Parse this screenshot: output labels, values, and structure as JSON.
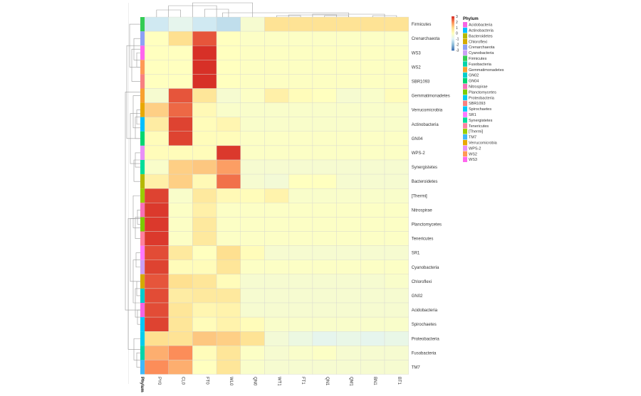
{
  "chart_data": {
    "type": "heatmap",
    "columns": [
      "PY0",
      "CL0",
      "FT0",
      "WL0",
      "QN0",
      "WT1",
      "FT1",
      "QN1",
      "QM1",
      "BN1",
      "BT1"
    ],
    "rows": [
      "Firmicutes",
      "Crenarchaeota",
      "WS3",
      "WS2",
      "SBR1093",
      "Gemmatimonadetes",
      "Verrucomicrobia",
      "Actinobacteria",
      "GN04",
      "WPS-2",
      "Synergistetes",
      "Bacteroidetes",
      "[Thermi]",
      "Nitrospirae",
      "Planctomycetes",
      "Tenericutes",
      "SR1",
      "Cyanobacteria",
      "Chloroflexi",
      "GN02",
      "Acidobacteria",
      "Spirochaetes",
      "Proteobacteria",
      "Fusobacteria",
      "TM7"
    ],
    "values": [
      [
        -1.2,
        -0.8,
        -1.2,
        -1.4,
        -0.3,
        0.9,
        0.9,
        0.9,
        0.9,
        0.9,
        0.9
      ],
      [
        0.0,
        1.0,
        2.6,
        0.0,
        -0.1,
        -0.1,
        -0.1,
        -0.1,
        -0.1,
        -0.1,
        -0.1
      ],
      [
        0.0,
        0.0,
        3.0,
        0.0,
        -0.05,
        -0.05,
        -0.05,
        -0.05,
        -0.05,
        -0.05,
        -0.05
      ],
      [
        0.0,
        0.0,
        3.0,
        0.0,
        -0.05,
        -0.05,
        -0.05,
        -0.05,
        -0.05,
        -0.05,
        -0.05
      ],
      [
        0.0,
        0.0,
        3.0,
        0.0,
        -0.05,
        -0.05,
        -0.05,
        -0.05,
        -0.05,
        -0.05,
        -0.05
      ],
      [
        -0.3,
        2.6,
        0.8,
        -0.3,
        -0.1,
        0.5,
        0.1,
        0.0,
        -0.3,
        -0.2,
        0.1
      ],
      [
        1.2,
        2.4,
        0.2,
        -0.2,
        -0.2,
        -0.2,
        -0.2,
        -0.2,
        -0.2,
        -0.2,
        -0.2
      ],
      [
        0.6,
        2.8,
        0.1,
        0.3,
        -0.2,
        -0.2,
        -0.2,
        -0.2,
        -0.2,
        -0.2,
        -0.2
      ],
      [
        0.1,
        2.8,
        0.1,
        0.1,
        -0.1,
        -0.1,
        -0.1,
        -0.1,
        -0.1,
        -0.1,
        -0.1
      ],
      [
        0.1,
        0.1,
        0.1,
        2.9,
        -0.1,
        -0.1,
        -0.1,
        -0.1,
        -0.1,
        -0.1,
        -0.1
      ],
      [
        -0.2,
        1.2,
        1.3,
        1.8,
        -0.3,
        -0.3,
        -0.3,
        -0.3,
        -0.3,
        -0.3,
        -0.3
      ],
      [
        0.5,
        1.2,
        0.2,
        2.3,
        -0.3,
        -0.4,
        0.0,
        0.0,
        -0.3,
        -0.3,
        -0.3
      ],
      [
        2.8,
        -0.2,
        0.7,
        0.2,
        0.1,
        0.4,
        -0.2,
        -0.2,
        -0.2,
        -0.2,
        -0.2
      ],
      [
        2.9,
        -0.1,
        0.5,
        -0.1,
        -0.1,
        -0.1,
        -0.1,
        -0.1,
        -0.1,
        -0.1,
        -0.1
      ],
      [
        2.9,
        -0.1,
        0.7,
        -0.1,
        -0.1,
        -0.1,
        -0.1,
        -0.1,
        -0.1,
        -0.1,
        -0.1
      ],
      [
        2.9,
        -0.1,
        0.7,
        -0.1,
        -0.1,
        -0.1,
        -0.1,
        -0.1,
        -0.1,
        -0.1,
        -0.1
      ],
      [
        2.7,
        0.7,
        0.0,
        1.0,
        0.1,
        -0.3,
        -0.3,
        -0.3,
        -0.3,
        -0.3,
        -0.3
      ],
      [
        2.8,
        0.1,
        0.1,
        0.8,
        -0.1,
        -0.1,
        -0.1,
        -0.1,
        -0.1,
        -0.1,
        -0.1
      ],
      [
        2.6,
        1.0,
        0.8,
        0.1,
        -0.3,
        -0.3,
        -0.3,
        -0.3,
        -0.3,
        -0.3,
        -0.2
      ],
      [
        2.7,
        0.6,
        0.7,
        0.7,
        -0.3,
        -0.3,
        -0.3,
        -0.3,
        -0.3,
        -0.3,
        -0.3
      ],
      [
        2.7,
        0.8,
        0.3,
        0.4,
        -0.3,
        -0.3,
        -0.3,
        -0.3,
        -0.3,
        -0.3,
        -0.3
      ],
      [
        2.8,
        0.8,
        0.1,
        0.4,
        0.1,
        -0.2,
        -0.2,
        -0.2,
        -0.2,
        -0.2,
        -0.2
      ],
      [
        1.0,
        0.9,
        1.3,
        1.2,
        0.9,
        -0.4,
        -0.6,
        -0.8,
        -0.7,
        -0.8,
        -0.7
      ],
      [
        1.6,
        2.0,
        0.1,
        0.8,
        -0.1,
        -0.3,
        -0.2,
        -0.1,
        -0.3,
        -0.3,
        -0.3
      ],
      [
        2.0,
        1.6,
        0.0,
        0.8,
        -0.2,
        -0.3,
        -0.3,
        -0.3,
        -0.3,
        -0.3,
        -0.3
      ]
    ],
    "color_scale": {
      "range": [
        -3,
        3
      ],
      "ticks": [
        "3",
        "2",
        "1",
        "0",
        "-1",
        "-2",
        "-3"
      ],
      "colors": [
        "#4575B4",
        "#91BFDB",
        "#E0F3F8",
        "#FFFFBF",
        "#FEE090",
        "#FC8D59",
        "#D73027"
      ]
    },
    "annotation": {
      "title": "Phylum",
      "axis_label": "Phylum",
      "row_phylum": [
        "Firmicutes",
        "Crenarchaeota",
        "WS3",
        "WS2",
        "SBR1093",
        "Gemmatimonadetes",
        "Verrucomicrobia",
        "Actinobacteria",
        "GN04",
        "WPS-2",
        "Synergistetes",
        "Bacteroidetes",
        "[Thermi]",
        "Nitrospirae",
        "Planctomycetes",
        "Tenericutes",
        "SR1",
        "Cyanobacteria",
        "Chloroflexi",
        "GN02",
        "Acidobacteria",
        "Spirochaetes",
        "Proteobacteria",
        "Fusobacteria",
        "TM7"
      ],
      "legend": [
        {
          "name": "Acidobacteria",
          "color": "#F564E3"
        },
        {
          "name": "Actinobacteria",
          "color": "#00BFFF"
        },
        {
          "name": "Bacteroidetes",
          "color": "#B5B800"
        },
        {
          "name": "Chloroflexi",
          "color": "#D4AA00"
        },
        {
          "name": "Crenarchaeota",
          "color": "#8DA0F5"
        },
        {
          "name": "Cyanobacteria",
          "color": "#C9A0F5"
        },
        {
          "name": "Firmicutes",
          "color": "#33CC55"
        },
        {
          "name": "Fusobacteria",
          "color": "#00D4AA"
        },
        {
          "name": "Gemmatimonadetes",
          "color": "#F8A030"
        },
        {
          "name": "GN02",
          "color": "#00CCCC"
        },
        {
          "name": "GN04",
          "color": "#00D670"
        },
        {
          "name": "Nitrospirae",
          "color": "#F870B8"
        },
        {
          "name": "Planctomycetes",
          "color": "#7CCC00"
        },
        {
          "name": "Proteobacteria",
          "color": "#00CCEE"
        },
        {
          "name": "SBR1093",
          "color": "#F88080"
        },
        {
          "name": "Spirochaetes",
          "color": "#00C8F8"
        },
        {
          "name": "SR1",
          "color": "#FF77FF"
        },
        {
          "name": "Synergistetes",
          "color": "#00DD99"
        },
        {
          "name": "Tenericutes",
          "color": "#FF80A0"
        },
        {
          "name": "[Thermi]",
          "color": "#9ACD00"
        },
        {
          "name": "TM7",
          "color": "#40B8F8"
        },
        {
          "name": "Verrucomicrobia",
          "color": "#E8A800"
        },
        {
          "name": "WPS-2",
          "color": "#E890F8"
        },
        {
          "name": "WS2",
          "color": "#FF9955"
        },
        {
          "name": "WS3",
          "color": "#FF66EE"
        }
      ]
    },
    "dendrograms": {
      "rows": true,
      "columns": true
    }
  }
}
